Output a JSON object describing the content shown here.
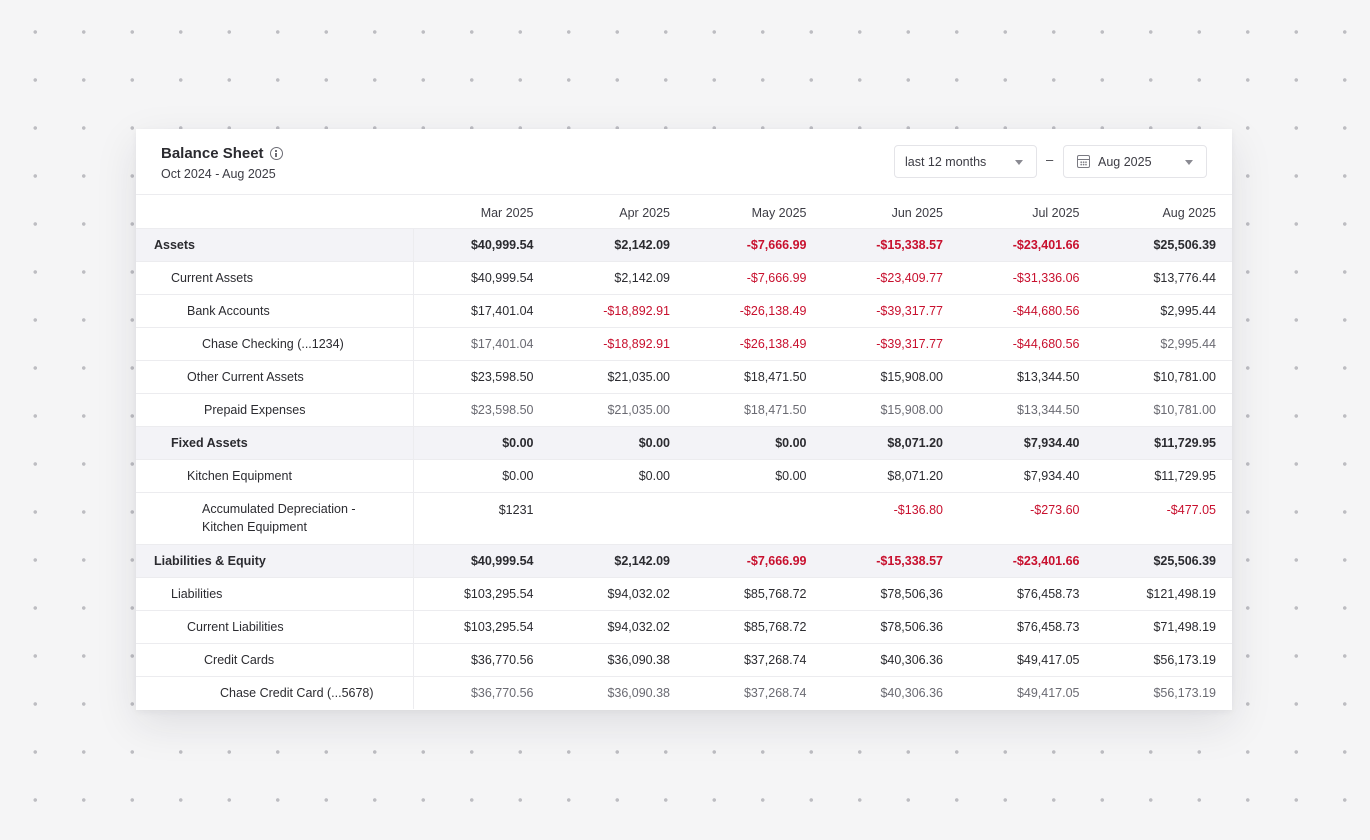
{
  "report": {
    "title": "Balance Sheet",
    "date_range": "Oct 2024 - Aug 2025"
  },
  "controls": {
    "range_label": "last 12 months",
    "separator": "–",
    "month_label": "Aug 2025"
  },
  "icons": {
    "info": "info-icon",
    "calendar": "calendar-icon",
    "dropdown": "chevron-down-icon"
  },
  "colors": {
    "negative": "#c8102e",
    "section_bg": "#f3f3f7"
  },
  "table": {
    "columns": [
      "Mar 2025",
      "Apr 2025",
      "May 2025",
      "Jun 2025",
      "Jul 2025",
      "Aug 2025"
    ],
    "rows": [
      {
        "label": "Assets",
        "values": [
          "$40,999.54",
          "$2,142.09",
          "-$7,666.99",
          "-$15,338.57",
          "-$23,401.66",
          "$25,506.39"
        ]
      },
      {
        "label": "Current Assets",
        "values": [
          "$40,999.54",
          "$2,142.09",
          "-$7,666.99",
          "-$23,409.77",
          "-$31,336.06",
          "$13,776.44"
        ]
      },
      {
        "label": "Bank Accounts",
        "values": [
          "$17,401.04",
          "-$18,892.91",
          "-$26,138.49",
          "-$39,317.77",
          "-$44,680.56",
          "$2,995.44"
        ]
      },
      {
        "label": "Chase Checking (...1234)",
        "values": [
          "$17,401.04",
          "-$18,892.91",
          "-$26,138.49",
          "-$39,317.77",
          "-$44,680.56",
          "$2,995.44"
        ]
      },
      {
        "label": "Other Current Assets",
        "values": [
          "$23,598.50",
          "$21,035.00",
          "$18,471.50",
          "$15,908.00",
          "$13,344.50",
          "$10,781.00"
        ]
      },
      {
        "label": "Prepaid Expenses",
        "values": [
          "$23,598.50",
          "$21,035.00",
          "$18,471.50",
          "$15,908.00",
          "$13,344.50",
          "$10,781.00"
        ]
      },
      {
        "label": "Fixed Assets",
        "values": [
          "$0.00",
          "$0.00",
          "$0.00",
          "$8,071.20",
          "$7,934.40",
          "$11,729.95"
        ]
      },
      {
        "label": "Kitchen Equipment",
        "values": [
          "$0.00",
          "$0.00",
          "$0.00",
          "$8,071.20",
          "$7,934.40",
          "$11,729.95"
        ]
      },
      {
        "label_line1": "Accumulated Depreciation -",
        "label_line2": "Kitchen Equipment",
        "values": [
          "$1231",
          "",
          "",
          "-$136.80",
          "-$273.60",
          "-$477.05"
        ]
      },
      {
        "label": "Liabilities & Equity",
        "values": [
          "$40,999.54",
          "$2,142.09",
          "-$7,666.99",
          "-$15,338.57",
          "-$23,401.66",
          "$25,506.39"
        ]
      },
      {
        "label": "Liabilities",
        "values": [
          "$103,295.54",
          "$94,032.02",
          "$85,768.72",
          "$78,506,36",
          "$76,458.73",
          "$121,498.19"
        ]
      },
      {
        "label": "Current Liabilities",
        "values": [
          "$103,295.54",
          "$94,032.02",
          "$85,768.72",
          "$78,506.36",
          "$76,458.73",
          "$71,498.19"
        ]
      },
      {
        "label": "Credit Cards",
        "values": [
          "$36,770.56",
          "$36,090.38",
          "$37,268.74",
          "$40,306.36",
          "$49,417.05",
          "$56,173.19"
        ]
      },
      {
        "label": "Chase Credit Card (...5678)",
        "values": [
          "$36,770.56",
          "$36,090.38",
          "$37,268.74",
          "$40,306.36",
          "$49,417.05",
          "$56,173.19"
        ]
      }
    ]
  }
}
